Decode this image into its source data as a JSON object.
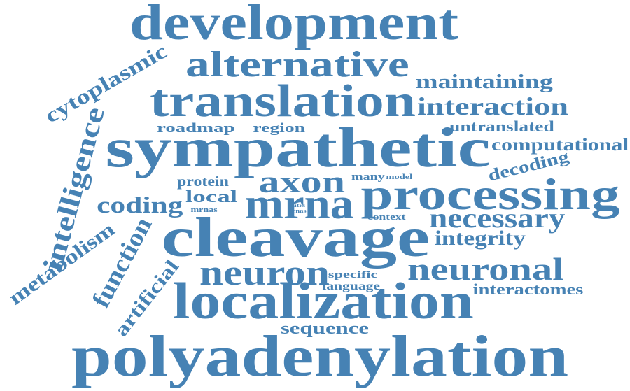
{
  "color": "#4682b4",
  "words": {
    "development": "development",
    "alternative": "alternative",
    "translation": "translation",
    "maintaining": "maintaining",
    "interaction": "interaction",
    "untranslated": "untranslated",
    "computational": "computational",
    "decoding": "decoding",
    "cytoplasmic": "cytoplasmic",
    "roadmap": "roadmap",
    "region": "region",
    "sympathetic": "sympathetic",
    "intelligence": "intelligence",
    "protein": "protein",
    "local": "local",
    "axon": "axon",
    "many": "many",
    "model": "model",
    "processing": "processing",
    "coding": "coding",
    "mrna": "mrna",
    "mrnas": "mrnas",
    "utrs": "utrs",
    "rnas": "rnas",
    "context": "context",
    "necessary": "necessary",
    "cleavage": "cleavage",
    "integrity": "integrity",
    "metabolism": "metabolism",
    "function": "function",
    "neuron": "neuron",
    "neuronal": "neuronal",
    "specific": "specific",
    "language": "language",
    "interactomes": "interactomes",
    "artificial": "artificial",
    "localization": "localization",
    "sequence": "sequence",
    "polyadenylation": "polyadenylation"
  }
}
